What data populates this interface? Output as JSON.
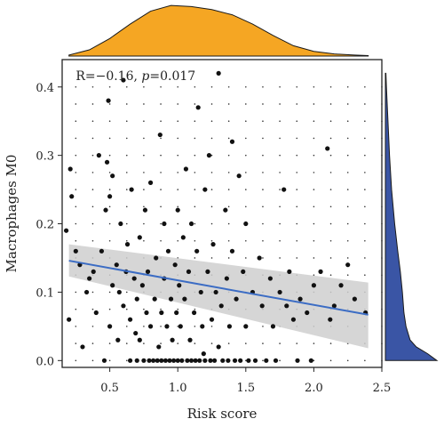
{
  "chart_data": {
    "type": "scatter",
    "xlabel": "Risk score",
    "ylabel": "Macrophages M0",
    "xlim": [
      0.15,
      2.5
    ],
    "ylim": [
      -0.01,
      0.44
    ],
    "xticks": [
      0.5,
      1.0,
      1.5,
      2.0,
      2.5
    ],
    "xtick_labels": [
      "0.5",
      "1.0",
      "1.5",
      "2.0",
      "2.5"
    ],
    "yticks": [
      0.0,
      0.1,
      0.2,
      0.3,
      0.4
    ],
    "ytick_labels": [
      "0.0",
      "0.1",
      "0.2",
      "0.3",
      "0.4"
    ],
    "annotation": {
      "r_text": "R=−0.16, ",
      "p_label": "p",
      "p_value": "=0.017"
    },
    "grid": "dotted",
    "regression": {
      "x": [
        0.2,
        2.4
      ],
      "y": [
        0.146,
        0.067
      ],
      "ci_low": [
        0.123,
        0.018
      ],
      "ci_high": [
        0.17,
        0.114
      ],
      "color": "#3b6cc4"
    },
    "colors": {
      "points": "#111111",
      "top_density": "#f5a623",
      "right_density": "#3a55a5",
      "ci_band": "#cfcfcf"
    },
    "top_density": {
      "x": [
        0.2,
        0.35,
        0.5,
        0.65,
        0.8,
        0.95,
        1.1,
        1.25,
        1.4,
        1.55,
        1.7,
        1.85,
        2.0,
        2.15,
        2.3,
        2.4
      ],
      "d": [
        0.02,
        0.12,
        0.34,
        0.62,
        0.87,
        0.98,
        0.96,
        0.9,
        0.8,
        0.62,
        0.4,
        0.2,
        0.09,
        0.04,
        0.02,
        0.01
      ]
    },
    "right_density": {
      "y": [
        0.0,
        0.01,
        0.02,
        0.03,
        0.05,
        0.07,
        0.1,
        0.13,
        0.16,
        0.2,
        0.25,
        0.3,
        0.35,
        0.4,
        0.42
      ],
      "d": [
        1.0,
        0.82,
        0.6,
        0.48,
        0.4,
        0.36,
        0.33,
        0.29,
        0.24,
        0.18,
        0.12,
        0.08,
        0.05,
        0.02,
        0.01
      ]
    },
    "points": [
      [
        0.18,
        0.19
      ],
      [
        0.2,
        0.06
      ],
      [
        0.21,
        0.28
      ],
      [
        0.22,
        0.24
      ],
      [
        0.25,
        0.16
      ],
      [
        0.28,
        0.14
      ],
      [
        0.3,
        0.02
      ],
      [
        0.33,
        0.1
      ],
      [
        0.35,
        0.12
      ],
      [
        0.38,
        0.13
      ],
      [
        0.4,
        0.07
      ],
      [
        0.42,
        0.3
      ],
      [
        0.44,
        0.16
      ],
      [
        0.46,
        0.0
      ],
      [
        0.47,
        0.22
      ],
      [
        0.48,
        0.29
      ],
      [
        0.49,
        0.38
      ],
      [
        0.5,
        0.24
      ],
      [
        0.5,
        0.05
      ],
      [
        0.52,
        0.11
      ],
      [
        0.52,
        0.27
      ],
      [
        0.55,
        0.14
      ],
      [
        0.56,
        0.03
      ],
      [
        0.57,
        0.1
      ],
      [
        0.58,
        0.2
      ],
      [
        0.6,
        0.41
      ],
      [
        0.6,
        0.08
      ],
      [
        0.62,
        0.13
      ],
      [
        0.63,
        0.17
      ],
      [
        0.65,
        0.0
      ],
      [
        0.65,
        0.06
      ],
      [
        0.66,
        0.25
      ],
      [
        0.68,
        0.12
      ],
      [
        0.69,
        0.04
      ],
      [
        0.7,
        0.09
      ],
      [
        0.7,
        0.0
      ],
      [
        0.72,
        0.18
      ],
      [
        0.72,
        0.03
      ],
      [
        0.74,
        0.11
      ],
      [
        0.75,
        0.0
      ],
      [
        0.76,
        0.22
      ],
      [
        0.77,
        0.07
      ],
      [
        0.78,
        0.13
      ],
      [
        0.79,
        0.0
      ],
      [
        0.8,
        0.05
      ],
      [
        0.8,
        0.26
      ],
      [
        0.82,
        0.0
      ],
      [
        0.83,
        0.09
      ],
      [
        0.84,
        0.15
      ],
      [
        0.85,
        0.0
      ],
      [
        0.86,
        0.02
      ],
      [
        0.87,
        0.33
      ],
      [
        0.88,
        0.07
      ],
      [
        0.88,
        0.0
      ],
      [
        0.9,
        0.12
      ],
      [
        0.9,
        0.2
      ],
      [
        0.91,
        0.0
      ],
      [
        0.92,
        0.05
      ],
      [
        0.93,
        0.16
      ],
      [
        0.94,
        0.0
      ],
      [
        0.95,
        0.09
      ],
      [
        0.96,
        0.03
      ],
      [
        0.97,
        0.0
      ],
      [
        0.98,
        0.14
      ],
      [
        0.99,
        0.07
      ],
      [
        1.0,
        0.22
      ],
      [
        1.0,
        0.0
      ],
      [
        1.01,
        0.11
      ],
      [
        1.02,
        0.05
      ],
      [
        1.03,
        0.0
      ],
      [
        1.04,
        0.18
      ],
      [
        1.05,
        0.09
      ],
      [
        1.06,
        0.28
      ],
      [
        1.07,
        0.0
      ],
      [
        1.08,
        0.13
      ],
      [
        1.09,
        0.03
      ],
      [
        1.1,
        0.2
      ],
      [
        1.1,
        0.0
      ],
      [
        1.12,
        0.07
      ],
      [
        1.13,
        0.0
      ],
      [
        1.14,
        0.16
      ],
      [
        1.15,
        0.37
      ],
      [
        1.16,
        0.0
      ],
      [
        1.17,
        0.1
      ],
      [
        1.18,
        0.05
      ],
      [
        1.19,
        0.01
      ],
      [
        1.2,
        0.25
      ],
      [
        1.2,
        0.0
      ],
      [
        1.22,
        0.13
      ],
      [
        1.23,
        0.3
      ],
      [
        1.24,
        0.0
      ],
      [
        1.25,
        0.06
      ],
      [
        1.26,
        0.17
      ],
      [
        1.27,
        0.0
      ],
      [
        1.28,
        0.1
      ],
      [
        1.3,
        0.42
      ],
      [
        1.3,
        0.02
      ],
      [
        1.32,
        0.08
      ],
      [
        1.33,
        0.0
      ],
      [
        1.35,
        0.22
      ],
      [
        1.36,
        0.12
      ],
      [
        1.37,
        0.0
      ],
      [
        1.38,
        0.05
      ],
      [
        1.4,
        0.32
      ],
      [
        1.4,
        0.16
      ],
      [
        1.42,
        0.0
      ],
      [
        1.43,
        0.09
      ],
      [
        1.45,
        0.27
      ],
      [
        1.46,
        0.0
      ],
      [
        1.48,
        0.13
      ],
      [
        1.5,
        0.05
      ],
      [
        1.5,
        0.2
      ],
      [
        1.52,
        0.0
      ],
      [
        1.55,
        0.1
      ],
      [
        1.57,
        0.0
      ],
      [
        1.6,
        0.15
      ],
      [
        1.62,
        0.08
      ],
      [
        1.65,
        0.0
      ],
      [
        1.68,
        0.12
      ],
      [
        1.7,
        0.05
      ],
      [
        1.72,
        0.0
      ],
      [
        1.75,
        0.1
      ],
      [
        1.78,
        0.25
      ],
      [
        1.8,
        0.08
      ],
      [
        1.82,
        0.13
      ],
      [
        1.85,
        0.06
      ],
      [
        1.88,
        0.0
      ],
      [
        1.9,
        0.09
      ],
      [
        1.95,
        0.07
      ],
      [
        1.98,
        0.0
      ],
      [
        2.0,
        0.11
      ],
      [
        2.05,
        0.13
      ],
      [
        2.1,
        0.31
      ],
      [
        2.12,
        0.06
      ],
      [
        2.15,
        0.08
      ],
      [
        2.2,
        0.11
      ],
      [
        2.25,
        0.14
      ],
      [
        2.3,
        0.09
      ],
      [
        2.38,
        0.07
      ]
    ]
  }
}
